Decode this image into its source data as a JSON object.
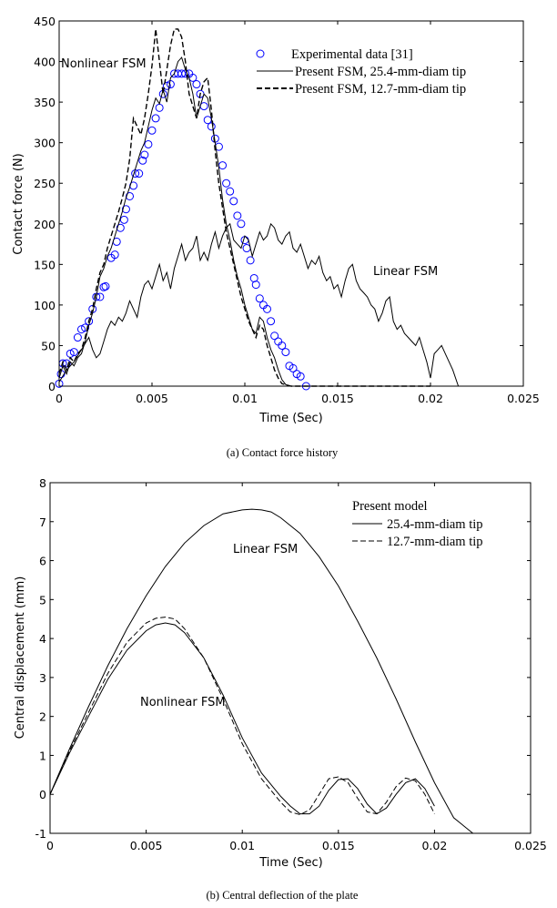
{
  "chart_data": [
    {
      "type": "line",
      "caption": "(a) Contact force history",
      "xlabel": "Time  (Sec)",
      "ylabel": "Contact force (N)",
      "xlim": [
        0,
        0.025
      ],
      "ylim": [
        0,
        450
      ],
      "xticks": [
        0,
        0.005,
        0.01,
        0.015,
        0.02,
        0.025
      ],
      "xtick_labels": [
        "0",
        "0.005",
        "0.01",
        "0.015",
        "0.02",
        "0.025"
      ],
      "yticks": [
        0,
        50,
        100,
        150,
        200,
        250,
        300,
        350,
        400,
        450
      ],
      "ytick_labels": [
        "0",
        "50",
        "100",
        "150",
        "200",
        "250",
        "300",
        "350",
        "400",
        "450"
      ],
      "grid": false,
      "legend_position": "top-right",
      "legend": [
        {
          "label": "Experimental data [31]",
          "style": "circle",
          "color": "#0000ff"
        },
        {
          "label": "Present FSM, 25.4-mm-diam tip",
          "style": "solid",
          "color": "#000000"
        },
        {
          "label": "Present FSM, 12.7-mm-diam tip",
          "style": "dashed",
          "color": "#000000"
        }
      ],
      "annotations": [
        {
          "text": "Nonlinear FSM",
          "x": 0.0,
          "y": 400
        },
        {
          "text": "Linear FSM",
          "x": 0.0167,
          "y": 150
        }
      ],
      "series": [
        {
          "name": "Experimental data [31]",
          "style": "circle",
          "color": "#0000ff",
          "x": [
            0.0,
            0.0001,
            0.0002,
            0.0004,
            0.0006,
            0.0008,
            0.001,
            0.0012,
            0.0014,
            0.0016,
            0.0018,
            0.002,
            0.0022,
            0.0024,
            0.0025,
            0.0028,
            0.003,
            0.0031,
            0.0033,
            0.0035,
            0.0036,
            0.0038,
            0.004,
            0.0041,
            0.0043,
            0.0045,
            0.0046,
            0.0048,
            0.005,
            0.0052,
            0.0054,
            0.0056,
            0.0058,
            0.006,
            0.0062,
            0.0064,
            0.0066,
            0.0068,
            0.007,
            0.0072,
            0.0074,
            0.0076,
            0.0078,
            0.008,
            0.0082,
            0.0084,
            0.0086,
            0.0088,
            0.009,
            0.0092,
            0.0094,
            0.0096,
            0.0098,
            0.01,
            0.0101,
            0.0103,
            0.0105,
            0.0106,
            0.0108,
            0.011,
            0.0112,
            0.0114,
            0.0116,
            0.0118,
            0.012,
            0.0122,
            0.0124,
            0.0126,
            0.0128,
            0.013,
            0.0133
          ],
          "y": [
            3,
            15,
            28,
            28,
            40,
            42,
            60,
            70,
            72,
            80,
            95,
            110,
            110,
            122,
            123,
            158,
            162,
            178,
            195,
            205,
            218,
            234,
            247,
            262,
            262,
            278,
            285,
            298,
            315,
            330,
            343,
            360,
            370,
            372,
            385,
            385,
            385,
            385,
            385,
            380,
            372,
            360,
            345,
            328,
            320,
            305,
            295,
            272,
            250,
            240,
            228,
            210,
            200,
            180,
            170,
            155,
            133,
            125,
            108,
            100,
            95,
            80,
            62,
            55,
            50,
            42,
            25,
            22,
            15,
            12,
            0
          ]
        },
        {
          "name": "Present FSM, 25.4-mm-diam tip (Nonlinear FSM)",
          "style": "solid",
          "color": "#000000",
          "x": [
            0.0,
            0.0002,
            0.0004,
            0.0006,
            0.0008,
            0.001,
            0.0012,
            0.0014,
            0.0016,
            0.0018,
            0.002,
            0.0022,
            0.0024,
            0.0026,
            0.0028,
            0.003,
            0.0032,
            0.0034,
            0.0036,
            0.0038,
            0.004,
            0.0042,
            0.0044,
            0.0046,
            0.0048,
            0.005,
            0.0052,
            0.0054,
            0.0056,
            0.0058,
            0.006,
            0.0062,
            0.0064,
            0.0066,
            0.0068,
            0.007,
            0.0072,
            0.0074,
            0.0076,
            0.0078,
            0.008,
            0.0082,
            0.0084,
            0.0086,
            0.0088,
            0.009,
            0.0092,
            0.0094,
            0.0096,
            0.0098,
            0.01,
            0.0102,
            0.0104,
            0.0106,
            0.0108,
            0.011,
            0.0112,
            0.0114,
            0.0116,
            0.0118,
            0.012,
            0.0122,
            0.0124,
            0.013,
            0.0135
          ],
          "y": [
            10,
            25,
            15,
            30,
            25,
            35,
            40,
            55,
            75,
            90,
            110,
            135,
            145,
            160,
            170,
            185,
            200,
            215,
            232,
            245,
            260,
            275,
            290,
            300,
            320,
            340,
            355,
            348,
            365,
            350,
            380,
            385,
            400,
            405,
            390,
            380,
            360,
            330,
            345,
            360,
            355,
            330,
            300,
            270,
            230,
            200,
            180,
            155,
            135,
            120,
            100,
            85,
            70,
            65,
            85,
            80,
            60,
            45,
            35,
            20,
            8,
            2,
            0,
            0,
            0
          ]
        },
        {
          "name": "Present FSM, 12.7-mm-diam tip (Nonlinear FSM)",
          "style": "dashed",
          "color": "#000000",
          "x": [
            0.0,
            0.0002,
            0.0004,
            0.0006,
            0.0008,
            0.001,
            0.0012,
            0.0014,
            0.0016,
            0.0018,
            0.002,
            0.0022,
            0.0024,
            0.0026,
            0.0028,
            0.003,
            0.0032,
            0.0034,
            0.0036,
            0.0038,
            0.004,
            0.0042,
            0.0044,
            0.0046,
            0.0048,
            0.005,
            0.0052,
            0.0054,
            0.0056,
            0.0058,
            0.006,
            0.0062,
            0.0064,
            0.0066,
            0.0068,
            0.007,
            0.0072,
            0.0074,
            0.0076,
            0.0078,
            0.008,
            0.0082,
            0.0084,
            0.0086,
            0.0088,
            0.009,
            0.0092,
            0.0094,
            0.0096,
            0.0098,
            0.01,
            0.0102,
            0.0104,
            0.0106,
            0.0108,
            0.011,
            0.0112,
            0.0114,
            0.0116,
            0.0118,
            0.012,
            0.0125,
            0.013,
            0.015,
            0.0175,
            0.02
          ],
          "y": [
            15,
            30,
            20,
            35,
            30,
            40,
            45,
            60,
            80,
            95,
            120,
            140,
            150,
            170,
            185,
            200,
            215,
            232,
            250,
            280,
            330,
            320,
            310,
            330,
            360,
            395,
            440,
            400,
            360,
            390,
            420,
            440,
            440,
            430,
            400,
            360,
            345,
            330,
            360,
            375,
            380,
            340,
            290,
            250,
            220,
            190,
            170,
            150,
            130,
            110,
            95,
            80,
            70,
            60,
            75,
            70,
            50,
            35,
            20,
            10,
            3,
            0,
            0,
            0,
            0,
            0
          ]
        },
        {
          "name": "Present FSM, 25.4-mm-diam tip (Linear FSM)",
          "style": "solid",
          "color": "#000000",
          "x": [
            0.0,
            0.0004,
            0.0008,
            0.0012,
            0.0016,
            0.0018,
            0.002,
            0.0022,
            0.0024,
            0.0026,
            0.0028,
            0.003,
            0.0032,
            0.0034,
            0.0036,
            0.0038,
            0.004,
            0.0042,
            0.0044,
            0.0046,
            0.0048,
            0.005,
            0.0052,
            0.0054,
            0.0056,
            0.0058,
            0.006,
            0.0062,
            0.0064,
            0.0066,
            0.0068,
            0.007,
            0.0072,
            0.0074,
            0.0076,
            0.0078,
            0.008,
            0.0082,
            0.0084,
            0.0086,
            0.0088,
            0.009,
            0.0092,
            0.0094,
            0.0096,
            0.0098,
            0.01,
            0.0102,
            0.0104,
            0.0106,
            0.0108,
            0.011,
            0.0112,
            0.0114,
            0.0116,
            0.0118,
            0.012,
            0.0122,
            0.0124,
            0.0126,
            0.0128,
            0.013,
            0.0132,
            0.0134,
            0.0136,
            0.0138,
            0.014,
            0.0142,
            0.0144,
            0.0146,
            0.0148,
            0.015,
            0.0152,
            0.0154,
            0.0156,
            0.0158,
            0.016,
            0.0162,
            0.0164,
            0.0166,
            0.0168,
            0.017,
            0.0172,
            0.0174,
            0.0176,
            0.0178,
            0.018,
            0.0182,
            0.0184,
            0.0186,
            0.0188,
            0.019,
            0.0192,
            0.0194,
            0.0196,
            0.0198,
            0.02,
            0.0202,
            0.0204,
            0.0206,
            0.0208,
            0.021,
            0.0212,
            0.0215,
            0.0218
          ],
          "y": [
            5,
            20,
            30,
            45,
            60,
            45,
            35,
            40,
            55,
            70,
            80,
            75,
            85,
            80,
            90,
            105,
            95,
            85,
            110,
            125,
            130,
            120,
            135,
            150,
            130,
            140,
            120,
            145,
            160,
            175,
            155,
            165,
            170,
            185,
            155,
            165,
            155,
            175,
            190,
            170,
            185,
            195,
            200,
            180,
            175,
            170,
            185,
            180,
            160,
            175,
            190,
            180,
            185,
            200,
            195,
            180,
            175,
            185,
            190,
            170,
            165,
            175,
            160,
            145,
            155,
            150,
            160,
            140,
            130,
            135,
            120,
            125,
            110,
            130,
            145,
            150,
            130,
            120,
            115,
            110,
            100,
            95,
            80,
            90,
            105,
            110,
            80,
            70,
            75,
            65,
            60,
            55,
            50,
            60,
            45,
            30,
            10,
            40,
            45,
            50,
            40,
            30,
            20,
            0,
            0
          ]
        }
      ]
    },
    {
      "type": "line",
      "caption": "(b) Central deflection of the plate",
      "xlabel": "Time  (Sec)",
      "ylabel": "Central displacement (mm)",
      "xlim": [
        0,
        0.025
      ],
      "ylim": [
        -1,
        8
      ],
      "xticks": [
        0,
        0.005,
        0.01,
        0.015,
        0.02,
        0.025
      ],
      "xtick_labels": [
        "0",
        "0.005",
        "0.01",
        "0.015",
        "0.02",
        "0.025"
      ],
      "yticks": [
        -1,
        0,
        1,
        2,
        3,
        4,
        5,
        6,
        7,
        8
      ],
      "ytick_labels": [
        "-1",
        "0",
        "1",
        "2",
        "3",
        "4",
        "5",
        "6",
        "7",
        "8"
      ],
      "grid": false,
      "legend_position": "top-right",
      "legend_title": "Present model",
      "legend": [
        {
          "label": "25.4-mm-diam tip",
          "style": "solid",
          "color": "#000000"
        },
        {
          "label": "12.7-mm-diam tip",
          "style": "dashed",
          "color": "#000000"
        }
      ],
      "annotations": [
        {
          "text": "Linear FSM",
          "x": 0.0095,
          "y": 6.0
        },
        {
          "text": "Nonlinear FSM",
          "x": 0.0047,
          "y": 2.3
        }
      ],
      "series": [
        {
          "name": "25.4-mm-diam tip (Linear FSM)",
          "style": "solid",
          "color": "#000000",
          "x": [
            0.0,
            0.001,
            0.002,
            0.003,
            0.004,
            0.005,
            0.006,
            0.007,
            0.008,
            0.009,
            0.01,
            0.0105,
            0.011,
            0.0115,
            0.012,
            0.013,
            0.014,
            0.015,
            0.016,
            0.017,
            0.018,
            0.019,
            0.02,
            0.021,
            0.022
          ],
          "y": [
            0.0,
            1.15,
            2.25,
            3.3,
            4.25,
            5.1,
            5.85,
            6.45,
            6.9,
            7.2,
            7.3,
            7.32,
            7.3,
            7.25,
            7.1,
            6.7,
            6.1,
            5.35,
            4.45,
            3.5,
            2.45,
            1.35,
            0.3,
            -0.6,
            -1.0
          ]
        },
        {
          "name": "25.4-mm-diam tip (Nonlinear FSM)",
          "style": "solid",
          "color": "#000000",
          "x": [
            0.0,
            0.001,
            0.002,
            0.003,
            0.004,
            0.005,
            0.0055,
            0.006,
            0.0065,
            0.007,
            0.008,
            0.009,
            0.01,
            0.011,
            0.012,
            0.0125,
            0.013,
            0.0135,
            0.014,
            0.0145,
            0.015,
            0.0155,
            0.016,
            0.0165,
            0.017,
            0.0175,
            0.018,
            0.0185,
            0.019,
            0.0195,
            0.02
          ],
          "y": [
            0.0,
            1.05,
            2.0,
            2.95,
            3.7,
            4.2,
            4.35,
            4.4,
            4.35,
            4.15,
            3.5,
            2.55,
            1.45,
            0.55,
            -0.05,
            -0.3,
            -0.5,
            -0.5,
            -0.3,
            0.1,
            0.38,
            0.4,
            0.15,
            -0.25,
            -0.5,
            -0.35,
            0.0,
            0.3,
            0.4,
            0.15,
            -0.3
          ]
        },
        {
          "name": "12.7-mm-diam tip (Nonlinear FSM)",
          "style": "dashed",
          "color": "#000000",
          "x": [
            0.0,
            0.001,
            0.002,
            0.003,
            0.004,
            0.005,
            0.0055,
            0.006,
            0.0065,
            0.007,
            0.008,
            0.009,
            0.01,
            0.011,
            0.012,
            0.0125,
            0.013,
            0.0135,
            0.014,
            0.0145,
            0.015,
            0.0155,
            0.016,
            0.0165,
            0.017,
            0.0175,
            0.018,
            0.0185,
            0.019,
            0.0195,
            0.02
          ],
          "y": [
            0.0,
            1.1,
            2.1,
            3.1,
            3.9,
            4.4,
            4.52,
            4.55,
            4.5,
            4.25,
            3.5,
            2.45,
            1.3,
            0.4,
            -0.2,
            -0.45,
            -0.52,
            -0.4,
            0.0,
            0.4,
            0.45,
            0.3,
            -0.1,
            -0.45,
            -0.5,
            -0.2,
            0.2,
            0.42,
            0.35,
            0.0,
            -0.5
          ]
        }
      ]
    }
  ]
}
